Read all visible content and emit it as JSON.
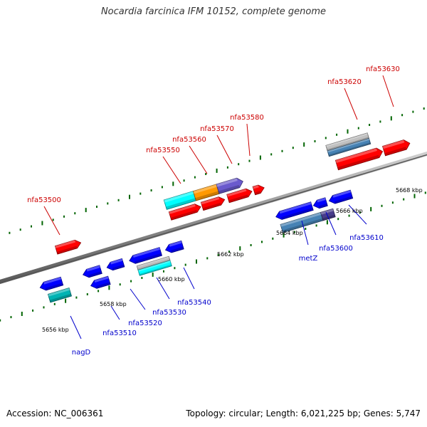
{
  "header": {
    "title": "Nocardia farcinica IFM 10152, complete genome"
  },
  "footer": {
    "accession": "Accession: NC_006361",
    "summary": "Topology: circular; Length: 6,021,225 bp; Genes: 5,747"
  },
  "colors": {
    "backbone": "#8c8c8c",
    "forward_label": "#cc0000",
    "reverse_label": "#0000cc",
    "forward_gene": "#ff0000",
    "reverse_gene": "#0000ff",
    "dot_grid": "#006400",
    "cyan": "#00ffff",
    "teal": "#00b3b3",
    "orange": "#ff9900",
    "purple": "#6a5acd",
    "dark_purple": "#483d8b",
    "steel_blue": "#4682b4",
    "silver": "#c0c0c0"
  },
  "map": {
    "scale_labels": [
      "5656 kbp",
      "5658 kbp",
      "5660 kbp",
      "5662 kbp",
      "5664 kbp",
      "5666 kbp",
      "5668 kbp"
    ],
    "forward_genes": [
      "nfa53500",
      "nfa53550",
      "nfa53560",
      "nfa53570",
      "nfa53580",
      "nfa53620",
      "nfa53630"
    ],
    "reverse_genes": [
      "nagD",
      "nfa53510",
      "nfa53520",
      "nfa53530",
      "nfa53540",
      "metZ",
      "nfa53600",
      "nfa53610"
    ]
  }
}
